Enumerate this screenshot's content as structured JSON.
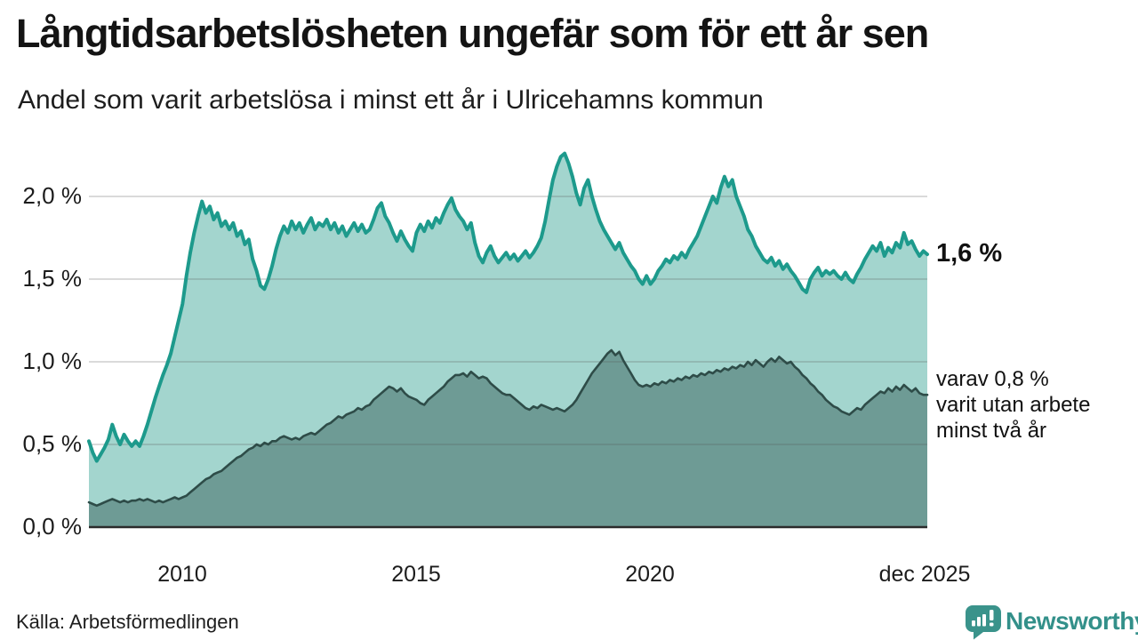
{
  "header": {
    "title": "Långtidsarbetslösheten ungefär som för ett år sen",
    "subtitle": "Andel som varit arbetslösa i minst ett år i Ulricehamns kommun"
  },
  "footer": {
    "source": "Källa: Arbetsförmedlingen",
    "brand": "Newsworthy"
  },
  "colors": {
    "accent_teal": "#1d9a8c",
    "fill_light": "#a3d5ce",
    "fill_dark": "#6e9b95",
    "line_dark": "#2e4c48",
    "grid": "#555555",
    "axis": "#2b2b2b",
    "brand_teal": "#33908a",
    "text": "#141414"
  },
  "chart_data": {
    "type": "area",
    "title": "Långtidsarbetslösheten ungefär som för ett år sen",
    "subtitle": "Andel som varit arbetslösa i minst ett år i Ulricehamns kommun",
    "source": "Källa: Arbetsförmedlingen",
    "unit": "%",
    "x_domain": [
      2008.0,
      2025.9167
    ],
    "ylim": [
      0,
      2.35
    ],
    "grid": "horizontal",
    "legend_position": "right-annotations",
    "yticks": [
      {
        "v": 2.0,
        "label": "2,0 %"
      },
      {
        "v": 1.5,
        "label": "1,5 %"
      },
      {
        "v": 1.0,
        "label": "1,0 %"
      },
      {
        "v": 0.5,
        "label": "0,5 %"
      },
      {
        "v": 0.0,
        "label": "0,0 %"
      }
    ],
    "xticks": [
      {
        "v": 2010,
        "label": "2010"
      },
      {
        "v": 2015,
        "label": "2015"
      },
      {
        "v": 2020,
        "label": "2020"
      },
      {
        "v": 2025.9167,
        "label": "dec 2025"
      }
    ],
    "annotations": {
      "latest_label": "1,6 %",
      "note_lines": [
        "varav 0,8 %",
        "varit utan arbete",
        "minst två år"
      ]
    },
    "series": [
      {
        "name": "Andel arbetslösa i minst ett år",
        "end_value": 1.65,
        "monthly": {
          "2008": [
            0.52,
            0.45,
            0.4,
            0.44,
            0.48,
            0.53,
            0.62,
            0.55,
            0.5,
            0.56,
            0.52,
            0.49
          ],
          "2009": [
            0.52,
            0.49,
            0.55,
            0.62,
            0.7,
            0.78,
            0.85,
            0.92,
            0.98,
            1.05,
            1.15,
            1.25
          ],
          "2010": [
            1.35,
            1.52,
            1.66,
            1.78,
            1.88,
            1.97,
            1.9,
            1.94,
            1.86,
            1.9,
            1.82,
            1.85
          ],
          "2011": [
            1.8,
            1.84,
            1.76,
            1.79,
            1.71,
            1.74,
            1.62,
            1.55,
            1.46,
            1.44,
            1.5,
            1.58
          ],
          "2012": [
            1.68,
            1.76,
            1.82,
            1.78,
            1.85,
            1.8,
            1.84,
            1.78,
            1.83,
            1.87,
            1.8,
            1.84
          ],
          "2013": [
            1.82,
            1.86,
            1.8,
            1.84,
            1.78,
            1.82,
            1.76,
            1.8,
            1.84,
            1.79,
            1.83,
            1.78
          ],
          "2014": [
            1.8,
            1.86,
            1.93,
            1.96,
            1.88,
            1.84,
            1.78,
            1.73,
            1.79,
            1.74,
            1.7,
            1.67
          ],
          "2015": [
            1.78,
            1.83,
            1.79,
            1.85,
            1.81,
            1.87,
            1.84,
            1.9,
            1.95,
            1.99,
            1.92,
            1.88
          ],
          "2016": [
            1.85,
            1.8,
            1.84,
            1.72,
            1.64,
            1.6,
            1.66,
            1.7,
            1.64,
            1.6,
            1.63,
            1.66
          ],
          "2017": [
            1.62,
            1.65,
            1.61,
            1.64,
            1.67,
            1.63,
            1.66,
            1.7,
            1.75,
            1.85,
            1.98,
            2.1
          ],
          "2018": [
            2.18,
            2.24,
            2.26,
            2.2,
            2.12,
            2.02,
            1.95,
            2.05,
            2.1,
            2.0,
            1.92,
            1.85
          ],
          "2019": [
            1.8,
            1.76,
            1.72,
            1.68,
            1.72,
            1.66,
            1.62,
            1.58,
            1.55,
            1.5,
            1.47,
            1.52
          ],
          "2020": [
            1.47,
            1.5,
            1.55,
            1.58,
            1.62,
            1.6,
            1.64,
            1.62,
            1.66,
            1.63,
            1.68,
            1.72
          ],
          "2021": [
            1.76,
            1.82,
            1.88,
            1.94,
            2.0,
            1.96,
            2.05,
            2.12,
            2.06,
            2.1,
            2.0,
            1.94
          ],
          "2022": [
            1.88,
            1.8,
            1.76,
            1.7,
            1.66,
            1.62,
            1.6,
            1.63,
            1.58,
            1.61,
            1.56,
            1.59
          ],
          "2023": [
            1.55,
            1.52,
            1.48,
            1.44,
            1.42,
            1.5,
            1.54,
            1.57,
            1.52,
            1.55,
            1.53,
            1.55
          ],
          "2024": [
            1.52,
            1.5,
            1.54,
            1.5,
            1.48,
            1.53,
            1.57,
            1.62,
            1.66,
            1.7,
            1.67,
            1.72
          ],
          "2025": [
            1.64,
            1.69,
            1.66,
            1.72,
            1.69,
            1.78,
            1.71,
            1.73,
            1.68,
            1.64,
            1.67,
            1.65
          ]
        }
      },
      {
        "name": "Varav utan arbete i minst två år",
        "end_value": 0.8,
        "monthly": {
          "2008": [
            0.15,
            0.14,
            0.13,
            0.14,
            0.15,
            0.16,
            0.17,
            0.16,
            0.15,
            0.16,
            0.15,
            0.16
          ],
          "2009": [
            0.16,
            0.17,
            0.16,
            0.17,
            0.16,
            0.15,
            0.16,
            0.15,
            0.16,
            0.17,
            0.18,
            0.17
          ],
          "2010": [
            0.18,
            0.19,
            0.21,
            0.23,
            0.25,
            0.27,
            0.29,
            0.3,
            0.32,
            0.33,
            0.34,
            0.36
          ],
          "2011": [
            0.38,
            0.4,
            0.42,
            0.43,
            0.45,
            0.47,
            0.48,
            0.5,
            0.49,
            0.51,
            0.5,
            0.52
          ],
          "2012": [
            0.52,
            0.54,
            0.55,
            0.54,
            0.53,
            0.54,
            0.53,
            0.55,
            0.56,
            0.57,
            0.56,
            0.58
          ],
          "2013": [
            0.6,
            0.62,
            0.63,
            0.65,
            0.67,
            0.66,
            0.68,
            0.69,
            0.7,
            0.72,
            0.71,
            0.73
          ],
          "2014": [
            0.74,
            0.77,
            0.79,
            0.81,
            0.83,
            0.85,
            0.84,
            0.82,
            0.84,
            0.81,
            0.79,
            0.78
          ],
          "2015": [
            0.77,
            0.75,
            0.74,
            0.77,
            0.79,
            0.81,
            0.83,
            0.85,
            0.88,
            0.9,
            0.92,
            0.92
          ],
          "2016": [
            0.93,
            0.91,
            0.94,
            0.92,
            0.9,
            0.91,
            0.9,
            0.87,
            0.85,
            0.83,
            0.81,
            0.8
          ],
          "2017": [
            0.8,
            0.78,
            0.76,
            0.74,
            0.72,
            0.71,
            0.73,
            0.72,
            0.74,
            0.73,
            0.72,
            0.71
          ],
          "2018": [
            0.72,
            0.71,
            0.7,
            0.72,
            0.74,
            0.77,
            0.81,
            0.85,
            0.89,
            0.93,
            0.96,
            0.99
          ],
          "2019": [
            1.02,
            1.05,
            1.07,
            1.04,
            1.06,
            1.01,
            0.97,
            0.93,
            0.89,
            0.86,
            0.85,
            0.86
          ],
          "2020": [
            0.85,
            0.87,
            0.86,
            0.88,
            0.87,
            0.89,
            0.88,
            0.9,
            0.89,
            0.91,
            0.9,
            0.92
          ],
          "2021": [
            0.91,
            0.93,
            0.92,
            0.94,
            0.93,
            0.95,
            0.94,
            0.96,
            0.95,
            0.97,
            0.96,
            0.98
          ],
          "2022": [
            0.97,
            1.0,
            0.98,
            1.01,
            0.99,
            0.97,
            1.0,
            1.02,
            1.0,
            1.03,
            1.01,
            0.99
          ],
          "2023": [
            1.0,
            0.97,
            0.95,
            0.92,
            0.9,
            0.87,
            0.85,
            0.82,
            0.8,
            0.77,
            0.75,
            0.73
          ],
          "2024": [
            0.72,
            0.7,
            0.69,
            0.68,
            0.7,
            0.72,
            0.71,
            0.74,
            0.76,
            0.78,
            0.8,
            0.82
          ],
          "2025": [
            0.81,
            0.84,
            0.82,
            0.85,
            0.83,
            0.86,
            0.84,
            0.82,
            0.84,
            0.81,
            0.8,
            0.8
          ]
        }
      }
    ]
  }
}
